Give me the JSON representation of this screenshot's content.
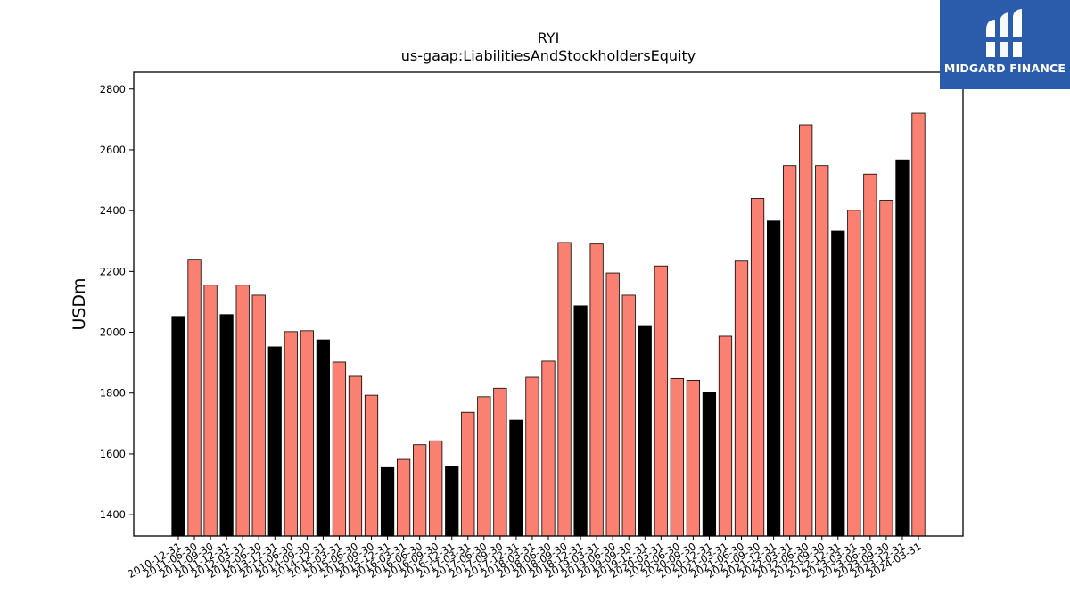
{
  "chart_data": {
    "type": "bar",
    "title": "RYI",
    "subtitle": "us-gaap:LiabilitiesAndStockholdersEquity",
    "xlabel": "",
    "ylabel": "USDm",
    "ylim": [
      1330,
      2855
    ],
    "yticks": [
      1400,
      1600,
      1800,
      2000,
      2200,
      2400,
      2600,
      2800
    ],
    "grid": false,
    "colors": {
      "annual": "#000000",
      "quarterly": "#fa8072",
      "edge": "#000000"
    },
    "categories": [
      "2010-12-31",
      "2011-06-30",
      "2011-09-30",
      "2011-12-31",
      "2012-03-31",
      "2012-06-30",
      "2013-12-31",
      "2014-06-30",
      "2014-09-30",
      "2014-12-31",
      "2015-03-31",
      "2015-06-30",
      "2015-09-30",
      "2015-12-31",
      "2016-03-31",
      "2016-06-30",
      "2016-09-30",
      "2016-12-31",
      "2017-03-31",
      "2017-06-30",
      "2017-09-30",
      "2017-12-31",
      "2018-03-31",
      "2018-06-30",
      "2018-09-30",
      "2018-12-31",
      "2019-03-31",
      "2019-06-30",
      "2019-09-30",
      "2019-12-31",
      "2020-03-31",
      "2020-06-30",
      "2020-09-30",
      "2020-12-31",
      "2021-03-31",
      "2021-06-30",
      "2021-09-30",
      "2021-12-31",
      "2022-03-31",
      "2022-06-30",
      "2022-09-30",
      "2022-12-31",
      "2023-03-31",
      "2023-06-30",
      "2023-09-30",
      "2023-12-31",
      "2024-03-31"
    ],
    "values": [
      2052,
      2240,
      2155,
      2058,
      2155,
      2122,
      1952,
      2002,
      2005,
      1975,
      1902,
      1855,
      1793,
      1555,
      1582,
      1630,
      1643,
      1558,
      1737,
      1788,
      1816,
      1711,
      1852,
      1905,
      2295,
      2087,
      2290,
      2195,
      2122,
      2022,
      2218,
      1848,
      1842,
      1802,
      1987,
      2234,
      2440,
      2366,
      2548,
      2682,
      2548,
      2333,
      2401,
      2520,
      2434,
      2567,
      2720
    ],
    "annual_flags": [
      true,
      false,
      false,
      true,
      false,
      false,
      true,
      false,
      false,
      true,
      false,
      false,
      false,
      true,
      false,
      false,
      false,
      true,
      false,
      false,
      false,
      true,
      false,
      false,
      false,
      true,
      false,
      false,
      false,
      true,
      false,
      false,
      false,
      true,
      false,
      false,
      false,
      true,
      false,
      false,
      false,
      true,
      false,
      false,
      false,
      true,
      false
    ]
  },
  "branding": {
    "logo_text": "MIDGARD FINANCE",
    "logo_icon": "midgard-mark-icon"
  }
}
